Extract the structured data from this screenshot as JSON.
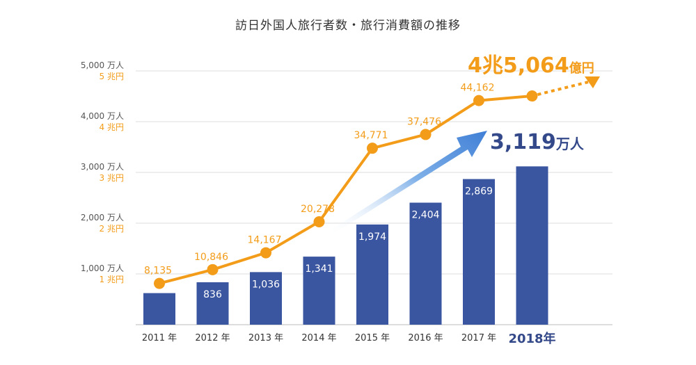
{
  "title": "訪日外国人旅行者数・旅行消費額の推移",
  "colors": {
    "bar": "#3b56a0",
    "line": "#f39c19",
    "grid": "#dcdcdc",
    "text": "#444444",
    "big_blue": "#34498a",
    "arrow": "#5b8fd6"
  },
  "chart_data": {
    "type": "bar",
    "categories": [
      "2011 年",
      "2012 年",
      "2013 年",
      "2014 年",
      "2015 年",
      "2016 年",
      "2017 年",
      "2018年"
    ],
    "ylim": [
      0,
      5000
    ],
    "ticks": [
      {
        "value": 1000,
        "left_label": "1,000 万人",
        "right_label": "1 兆円"
      },
      {
        "value": 2000,
        "left_label": "2,000 万人",
        "right_label": "2 兆円"
      },
      {
        "value": 3000,
        "left_label": "3,000 万人",
        "right_label": "3 兆円"
      },
      {
        "value": 4000,
        "left_label": "4,000 万人",
        "right_label": "4 兆円"
      },
      {
        "value": 5000,
        "left_label": "5,000 万人",
        "right_label": "5 兆円"
      }
    ],
    "grid": true,
    "series": [
      {
        "kind": "bar",
        "values": [
          622,
          836,
          1036,
          1341,
          1974,
          2404,
          2869,
          3119
        ],
        "labels": [
          "",
          "836",
          "1,036",
          "1,341",
          "1,974",
          "2,404",
          "2,869",
          ""
        ]
      },
      {
        "kind": "line",
        "values": [
          8135,
          10846,
          14167,
          20278,
          34771,
          37476,
          44162,
          45064
        ],
        "labels": [
          "8,135",
          "10,846",
          "14,167",
          "20,278",
          "34,771",
          "37,476",
          "44,162",
          ""
        ]
      }
    ],
    "annotations": {
      "spending_total_num": "4兆5,064",
      "spending_total_unit": "億円",
      "visitors_total_num": "3,119",
      "visitors_total_unit": "万人"
    }
  }
}
